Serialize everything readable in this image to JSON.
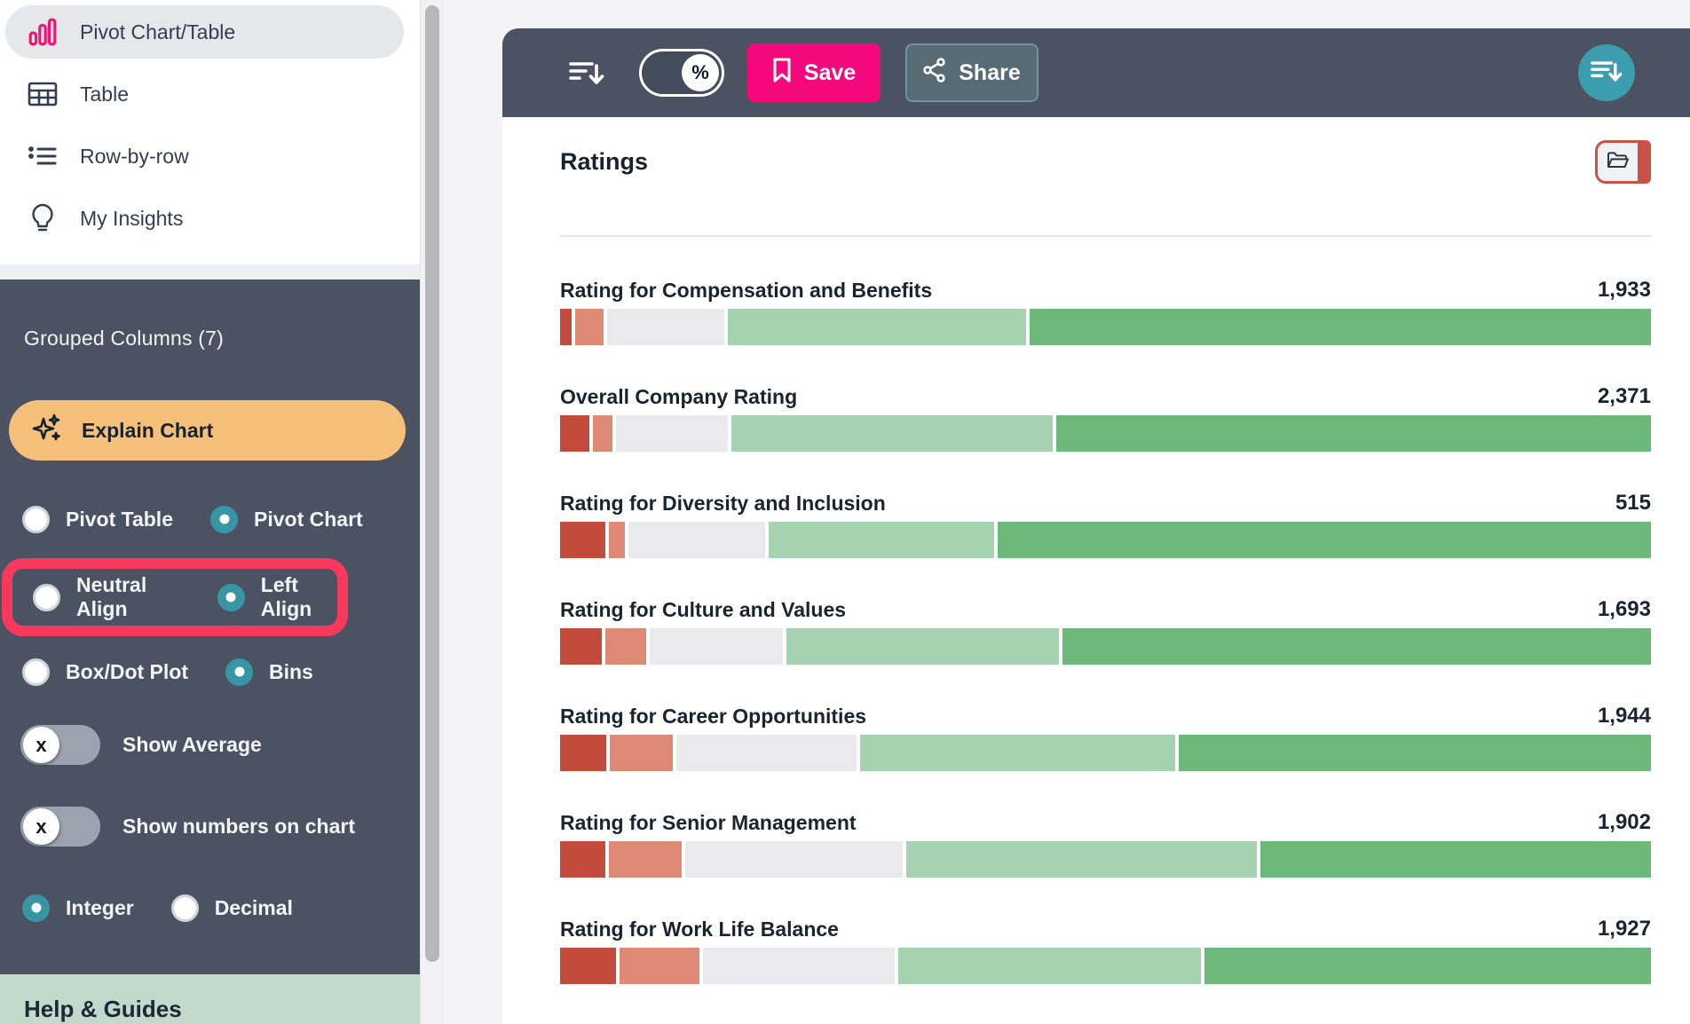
{
  "sidebar": {
    "menu": [
      {
        "label": "Pivot Chart/Table",
        "icon": "bar-chart-icon",
        "active": true
      },
      {
        "label": "Table",
        "icon": "table-icon",
        "active": false
      },
      {
        "label": "Row-by-row",
        "icon": "list-icon",
        "active": false
      },
      {
        "label": "My Insights",
        "icon": "lightbulb-icon",
        "active": false
      }
    ],
    "panel": {
      "grouped_columns_label": "Grouped Columns (7)",
      "explain_chart_label": "Explain Chart",
      "radio_groups": [
        {
          "highlighted": false,
          "options": [
            {
              "label": "Pivot Table",
              "selected": false
            },
            {
              "label": "Pivot Chart",
              "selected": true
            }
          ]
        },
        {
          "highlighted": true,
          "options": [
            {
              "label": "Neutral Align",
              "selected": false
            },
            {
              "label": "Left Align",
              "selected": true
            }
          ]
        },
        {
          "highlighted": false,
          "options": [
            {
              "label": "Box/Dot Plot",
              "selected": false
            },
            {
              "label": "Bins",
              "selected": true
            }
          ]
        }
      ],
      "toggles": [
        {
          "label": "Show Average",
          "state": "off",
          "knob_glyph": "x"
        },
        {
          "label": "Show numbers on chart",
          "state": "off",
          "knob_glyph": "x"
        }
      ],
      "number_format": {
        "options": [
          {
            "label": "Integer",
            "selected": true
          },
          {
            "label": "Decimal",
            "selected": false
          }
        ]
      }
    },
    "help_label": "Help & Guides"
  },
  "toolbar": {
    "sort_icon": "sort-descending-icon",
    "percent_toggle_glyph": "%",
    "save_label": "Save",
    "share_label": "Share"
  },
  "content": {
    "title": "Ratings",
    "folder_icon": "folder-icon"
  },
  "chart_data": {
    "type": "bar",
    "orientation": "horizontal-stacked",
    "title": "Ratings",
    "alignment": "left",
    "segment_colors": [
      "#c24b3e",
      "#df8a77",
      "#eaeaec",
      "#a5d2b1",
      "#6db87b"
    ],
    "segment_names": [
      "dark-red",
      "salmon",
      "neutral-gray",
      "light-green",
      "green"
    ],
    "rows": [
      {
        "label": "Rating for Compensation and Benefits",
        "value": "1,933",
        "segments_pct": [
          1.1,
          2.6,
          10.9,
          27.7,
          57.7
        ]
      },
      {
        "label": "Overall Company Rating",
        "value": "2,371",
        "segments_pct": [
          2.7,
          1.8,
          10.4,
          29.9,
          55.2
        ]
      },
      {
        "label": "Rating for Diversity and Inclusion",
        "value": "515",
        "segments_pct": [
          4.2,
          1.5,
          12.7,
          20.9,
          60.7
        ]
      },
      {
        "label": "Rating for Culture and Values",
        "value": "1,693",
        "segments_pct": [
          3.9,
          3.8,
          12.3,
          25.3,
          54.7
        ]
      },
      {
        "label": "Rating for Career Opportunities",
        "value": "1,944",
        "segments_pct": [
          4.3,
          5.8,
          16.8,
          29.2,
          43.9
        ]
      },
      {
        "label": "Rating for Senior Management",
        "value": "1,902",
        "segments_pct": [
          4.2,
          6.8,
          20.2,
          32.5,
          36.3
        ]
      },
      {
        "label": "Rating for Work Life Balance",
        "value": "1,927",
        "segments_pct": [
          5.2,
          7.4,
          17.8,
          28.1,
          41.5
        ]
      }
    ]
  },
  "colors": {
    "slate_panel": "#4b5363",
    "accent_pink": "#f5087c",
    "annotation_pink": "#f8395e",
    "accent_orange": "#f6c07a",
    "accent_teal": "#3b9dad",
    "help_green": "#c3d9cb",
    "folder_red": "#c75346"
  }
}
